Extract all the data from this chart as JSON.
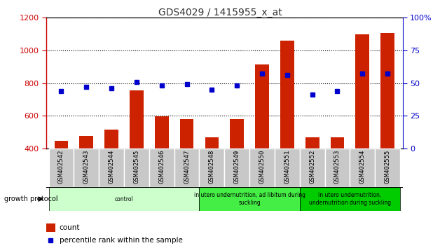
{
  "title": "GDS4029 / 1415955_x_at",
  "samples": [
    "GSM402542",
    "GSM402543",
    "GSM402544",
    "GSM402545",
    "GSM402546",
    "GSM402547",
    "GSM402548",
    "GSM402549",
    "GSM402550",
    "GSM402551",
    "GSM402552",
    "GSM402553",
    "GSM402554",
    "GSM402555"
  ],
  "counts": [
    450,
    480,
    515,
    755,
    597,
    580,
    468,
    580,
    915,
    1058,
    468,
    468,
    1095,
    1105
  ],
  "percentile": [
    44,
    47,
    46,
    51,
    48,
    49,
    45,
    48,
    57,
    56,
    41,
    44,
    57,
    57
  ],
  "ylim_left": [
    400,
    1200
  ],
  "ylim_right": [
    0,
    100
  ],
  "yticks_left": [
    400,
    600,
    800,
    1000,
    1200
  ],
  "yticks_right": [
    0,
    25,
    50,
    75,
    100
  ],
  "groups": [
    {
      "label": "control",
      "start": 0,
      "end": 6,
      "color": "#ccffcc"
    },
    {
      "label": "in utero undernutrition, ad libitum during\nsuckling",
      "start": 6,
      "end": 10,
      "color": "#44ee44"
    },
    {
      "label": "in utero undernutrition,\nundernutrition during suckling",
      "start": 10,
      "end": 14,
      "color": "#00cc00"
    }
  ],
  "bar_color": "#cc2200",
  "dot_color": "#0000cc",
  "bar_width": 0.55,
  "bar_bottom": 400,
  "left_axis_color": "#cc0000",
  "right_axis_color": "#0000cc",
  "growth_protocol_label": "growth protocol",
  "legend_count_label": "count",
  "legend_pct_label": "percentile rank within the sample",
  "xtick_bg_color": "#c8c8c8",
  "xtick_border_color": "#ffffff"
}
